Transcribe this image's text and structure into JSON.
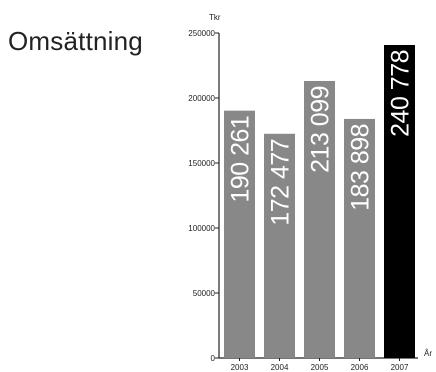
{
  "chart_data": {
    "type": "bar",
    "title": "Omsättning",
    "ylabel": "Tkr",
    "xlabel": "År",
    "ylim": [
      0,
      250000
    ],
    "yticks": [
      0,
      50000,
      100000,
      150000,
      200000,
      250000
    ],
    "ytick_labels": [
      "0",
      "50000",
      "100000",
      "150000",
      "200000",
      "250000"
    ],
    "categories": [
      "2003",
      "2004",
      "2005",
      "2006",
      "2007"
    ],
    "values": [
      190261,
      172477,
      213099,
      183898,
      240778
    ],
    "value_labels": [
      "190 261",
      "172 477",
      "213 099",
      "183 898",
      "240 778"
    ],
    "bar_colors": [
      "#888888",
      "#888888",
      "#888888",
      "#888888",
      "#000000"
    ],
    "grid": false,
    "legend": "none"
  }
}
